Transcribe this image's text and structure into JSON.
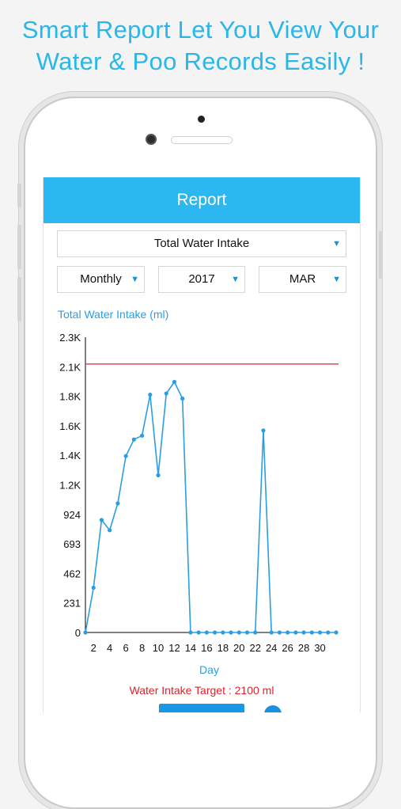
{
  "headline": {
    "line1": "Smart Report Let You View Your",
    "line2": "Water & Poo Records Easily !"
  },
  "navbar": {
    "title": "Report"
  },
  "filters": {
    "metric": "Total Water Intake",
    "period": "Monthly",
    "year": "2017",
    "month": "MAR"
  },
  "icons": {
    "dropdown": "triangle-down-icon"
  },
  "colors": {
    "accent": "#2cb7f0",
    "line": "#2a9ee0",
    "target": "#e0222a"
  },
  "chart_data": {
    "type": "line",
    "title": "Total Water Intake (ml)",
    "xlabel": "Day",
    "ylabel": "",
    "ylim": [
      0,
      2310
    ],
    "xlim": [
      1,
      32
    ],
    "y_ticks": [
      0,
      231,
      462,
      693,
      924,
      1155,
      1386,
      1617,
      1848,
      2079,
      2310
    ],
    "y_tick_labels": [
      "0",
      "231",
      "462",
      "693",
      "924",
      "1.2K",
      "1.4K",
      "1.6K",
      "1.8K",
      "2.1K",
      "2.3K"
    ],
    "x_ticks": [
      2,
      4,
      6,
      8,
      10,
      12,
      14,
      16,
      18,
      20,
      22,
      24,
      26,
      28,
      30
    ],
    "target_line": 2100,
    "grid": false,
    "series": [
      {
        "x": [
          1,
          2,
          3,
          4,
          5,
          6,
          7,
          8,
          9,
          10,
          11,
          12,
          13,
          14,
          15,
          16,
          17,
          18,
          19,
          20,
          21,
          22,
          23,
          24,
          25,
          26,
          27,
          28,
          29,
          30,
          31,
          32
        ],
        "values": [
          0,
          350,
          880,
          800,
          1010,
          1380,
          1510,
          1540,
          1860,
          1230,
          1870,
          1960,
          1830,
          0,
          0,
          0,
          0,
          0,
          0,
          0,
          0,
          0,
          1580,
          0,
          0,
          0,
          0,
          0,
          0,
          0,
          0,
          0
        ]
      }
    ],
    "target_label": "Water Intake Target : 2100 ml"
  }
}
